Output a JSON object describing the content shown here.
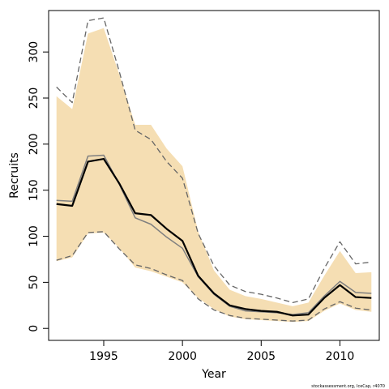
{
  "chart_data": {
    "type": "line",
    "title": "",
    "xlabel": "Year",
    "ylabel": "Recruits",
    "xlim": [
      1991.5,
      2012.5
    ],
    "ylim": [
      -13,
      345
    ],
    "x_ticks": [
      1995,
      2000,
      2005,
      2010
    ],
    "y_ticks": [
      0,
      50,
      100,
      150,
      200,
      250,
      300
    ],
    "grid": false,
    "legend": "none",
    "x": [
      1992,
      1993,
      1994,
      1995,
      1996,
      1997,
      1998,
      1999,
      2000,
      2001,
      2002,
      2003,
      2004,
      2005,
      2006,
      2007,
      2008,
      2009,
      2010,
      2011,
      2012
    ],
    "series": [
      {
        "role": "band_low",
        "style": "shaded",
        "color": "#f5deb3",
        "values": [
          73,
          77,
          103,
          104,
          87,
          66,
          62,
          56,
          50,
          33,
          21,
          13,
          10,
          9,
          8,
          7,
          8,
          19,
          27,
          20,
          18
        ]
      },
      {
        "role": "band_high",
        "style": "shaded",
        "color": "#f5deb3",
        "values": [
          252,
          238,
          320,
          326,
          275,
          221,
          221,
          195,
          176,
          105,
          63,
          42,
          35,
          32,
          28,
          24,
          28,
          57,
          84,
          60,
          61
        ]
      },
      {
        "role": "estimate",
        "style": "solid",
        "color": "#000000",
        "values": [
          135,
          133,
          181,
          184,
          157,
          125,
          123,
          108,
          95,
          57,
          38,
          25,
          21,
          19,
          18,
          14,
          15,
          33,
          47,
          34,
          33
        ]
      },
      {
        "role": "alternate_estimate",
        "style": "solid",
        "color": "#7f7f7f",
        "values": [
          139,
          138,
          187,
          188,
          156,
          120,
          113,
          99,
          87,
          56,
          37,
          24,
          19,
          18,
          17,
          15,
          17,
          35,
          51,
          39,
          38
        ]
      },
      {
        "role": "upper_interval",
        "style": "dashed",
        "color": "#666666",
        "values": [
          262,
          245,
          334,
          337,
          278,
          215,
          205,
          181,
          163,
          103,
          68,
          47,
          40,
          37,
          33,
          28,
          32,
          65,
          94,
          70,
          72
        ]
      },
      {
        "role": "lower_interval",
        "style": "dashed",
        "color": "#666666",
        "values": [
          74,
          79,
          104,
          105,
          86,
          69,
          65,
          58,
          52,
          32,
          20,
          14,
          11,
          10,
          9,
          8,
          9,
          21,
          29,
          22,
          20
        ]
      }
    ]
  },
  "footer": {
    "credit": "stockassessment.org, IceCap, r4070"
  }
}
